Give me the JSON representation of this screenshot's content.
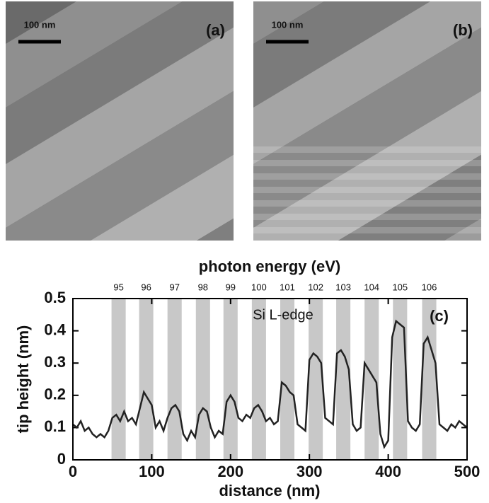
{
  "panels": [
    {
      "label": "(a)",
      "scale_bar": "100 nm"
    },
    {
      "label": "(b)",
      "scale_bar": "100 nm"
    }
  ],
  "chart_data": {
    "type": "line",
    "panel_label": "(c)",
    "annotation": "Si L-edge",
    "top_axis_label": "photon energy  (eV)",
    "xlabel": "distance  (nm)",
    "ylabel": "tip height  (nm)",
    "xlim": [
      0,
      500
    ],
    "xticks": [
      0,
      100,
      200,
      300,
      400,
      500
    ],
    "ylim": [
      0,
      0.5
    ],
    "yticks": [
      0,
      0.1,
      0.2,
      0.3,
      0.4,
      0.5
    ],
    "bands": {
      "labels": [
        95,
        96,
        97,
        98,
        99,
        100,
        101,
        102,
        103,
        104,
        105,
        106
      ],
      "ranges": [
        [
          49,
          67
        ],
        [
          84,
          102
        ],
        [
          120,
          138
        ],
        [
          156,
          174
        ],
        [
          191,
          209
        ],
        [
          227,
          245
        ],
        [
          263,
          281
        ],
        [
          299,
          317
        ],
        [
          334,
          352
        ],
        [
          370,
          388
        ],
        [
          406,
          424
        ],
        [
          443,
          461
        ]
      ],
      "color": "#c8c8c8"
    },
    "x": [
      0,
      5,
      10,
      15,
      20,
      25,
      30,
      35,
      40,
      45,
      50,
      55,
      60,
      65,
      70,
      75,
      80,
      85,
      90,
      95,
      100,
      105,
      110,
      115,
      120,
      125,
      130,
      135,
      140,
      145,
      150,
      155,
      160,
      165,
      170,
      175,
      180,
      185,
      190,
      195,
      200,
      205,
      210,
      215,
      220,
      225,
      230,
      235,
      240,
      245,
      250,
      255,
      260,
      265,
      270,
      275,
      280,
      285,
      290,
      295,
      300,
      305,
      310,
      315,
      320,
      325,
      330,
      335,
      340,
      345,
      350,
      355,
      360,
      365,
      370,
      375,
      380,
      385,
      390,
      395,
      400,
      405,
      410,
      415,
      420,
      425,
      430,
      435,
      440,
      445,
      450,
      455,
      460,
      465,
      470,
      475,
      480,
      485,
      490,
      495,
      500
    ],
    "series": [
      {
        "color": "#222222",
        "values": [
          0.11,
          0.1,
          0.12,
          0.09,
          0.1,
          0.08,
          0.07,
          0.08,
          0.07,
          0.09,
          0.13,
          0.14,
          0.12,
          0.15,
          0.12,
          0.13,
          0.11,
          0.16,
          0.21,
          0.19,
          0.17,
          0.1,
          0.12,
          0.09,
          0.13,
          0.16,
          0.17,
          0.15,
          0.08,
          0.06,
          0.09,
          0.07,
          0.14,
          0.16,
          0.15,
          0.1,
          0.07,
          0.09,
          0.08,
          0.18,
          0.2,
          0.18,
          0.13,
          0.12,
          0.14,
          0.13,
          0.16,
          0.17,
          0.15,
          0.12,
          0.13,
          0.11,
          0.12,
          0.24,
          0.23,
          0.21,
          0.2,
          0.11,
          0.1,
          0.09,
          0.31,
          0.33,
          0.32,
          0.3,
          0.13,
          0.12,
          0.11,
          0.33,
          0.34,
          0.32,
          0.28,
          0.11,
          0.09,
          0.1,
          0.3,
          0.28,
          0.26,
          0.24,
          0.08,
          0.04,
          0.06,
          0.38,
          0.43,
          0.42,
          0.41,
          0.12,
          0.1,
          0.09,
          0.11,
          0.36,
          0.38,
          0.34,
          0.3,
          0.11,
          0.1,
          0.09,
          0.11,
          0.1,
          0.12,
          0.11,
          0.1
        ]
      }
    ]
  }
}
